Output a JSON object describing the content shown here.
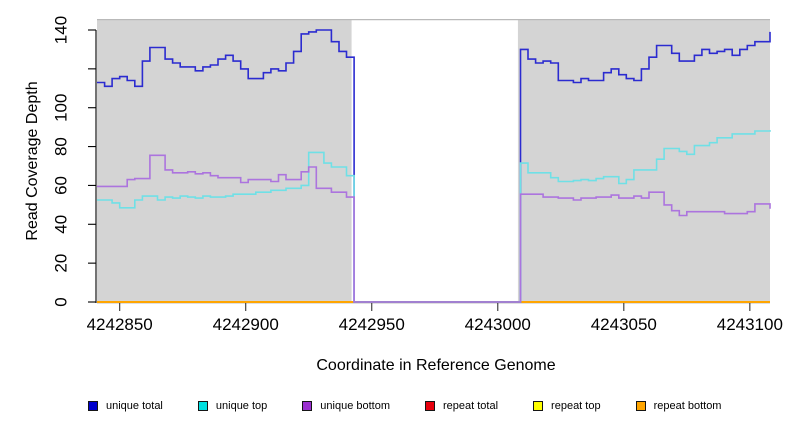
{
  "figure": {
    "background": "#ffffff",
    "plot_background": "#d4d4d4",
    "plot_top_border": "#b9b9b9"
  },
  "chart_data": {
    "type": "line",
    "subtype": "step",
    "title": "",
    "xlabel": "Coordinate in Reference Genome",
    "ylabel": "Read Coverage Depth",
    "xlim": [
      4242841,
      4243108
    ],
    "ylim": [
      0,
      140
    ],
    "grid": false,
    "x_ticks": {
      "values": [
        4242850,
        4242900,
        4242950,
        4243000,
        4243050,
        4243100
      ],
      "labels": [
        "4242850",
        "4242900",
        "4242950",
        "4243000",
        "4243050",
        "4243100"
      ]
    },
    "y_ticks": {
      "values": [
        0,
        20,
        40,
        60,
        80,
        100,
        120,
        140
      ],
      "labels": [
        "0",
        "20",
        "40",
        "60",
        "80",
        "100",
        "",
        "140"
      ]
    },
    "gap_region": {
      "x_start": 4242942,
      "x_end": 4243008,
      "fill": "#ffffff",
      "note": "no-data gap; all unique series drop to 0"
    },
    "x_start": 4242841,
    "x_step": 3,
    "n_points": 90,
    "series": [
      {
        "name": "unique total",
        "color": "#2B2BD0",
        "width": 1.6,
        "values": [
          113,
          111,
          115,
          116,
          114,
          111,
          124,
          131,
          131,
          125,
          123,
          121,
          121,
          119,
          121,
          122,
          125,
          127,
          124,
          120,
          115,
          115,
          118,
          120,
          119,
          123,
          129,
          138,
          139,
          140,
          140,
          134,
          129,
          126,
          0,
          0,
          0,
          0,
          0,
          0,
          0,
          0,
          0,
          0,
          0,
          0,
          0,
          0,
          0,
          0,
          0,
          0,
          0,
          0,
          0,
          0,
          130,
          125,
          123,
          124,
          123,
          114,
          114,
          113,
          115,
          114,
          114,
          118,
          120,
          117,
          115,
          114,
          120,
          126,
          132,
          132,
          128,
          124,
          124,
          127,
          130,
          128,
          129,
          130,
          127,
          130,
          132,
          134,
          134,
          139
        ]
      },
      {
        "name": "unique top",
        "color": "#6FE0E6",
        "width": 1.6,
        "values": [
          52.5,
          52.5,
          51,
          48.5,
          48.5,
          52.5,
          54.5,
          54.5,
          52.5,
          54,
          53.5,
          54.5,
          54,
          53.5,
          54.5,
          54,
          54,
          54.5,
          55.5,
          55.5,
          55.5,
          56.5,
          56.5,
          57.5,
          57.5,
          58.5,
          58.5,
          60,
          77,
          77,
          71.5,
          69.5,
          69.5,
          65,
          0,
          0,
          0,
          0,
          0,
          0,
          0,
          0,
          0,
          0,
          0,
          0,
          0,
          0,
          0,
          0,
          0,
          0,
          0,
          0,
          0,
          0,
          71.5,
          66.5,
          66.5,
          66.5,
          64,
          62,
          62,
          62.5,
          63,
          62.5,
          63.5,
          64.5,
          64.5,
          61,
          63,
          68,
          68,
          68,
          73.5,
          79,
          79,
          77.5,
          76,
          80.5,
          80.5,
          82,
          84.5,
          84.5,
          86.5,
          86.5,
          86.5,
          88,
          88,
          88.5
        ]
      },
      {
        "name": "unique bottom",
        "color": "#AC74DE",
        "width": 1.6,
        "values": [
          59.5,
          59.5,
          59.5,
          59.5,
          63,
          63.5,
          63.5,
          75.5,
          75.5,
          68,
          66.5,
          66.5,
          67,
          66,
          66.5,
          65,
          64,
          64,
          64,
          61.5,
          63,
          63,
          63,
          62,
          65.5,
          63,
          63,
          67,
          69.5,
          58.5,
          58.5,
          56.5,
          56.5,
          54,
          0,
          0,
          0,
          0,
          0,
          0,
          0,
          0,
          0,
          0,
          0,
          0,
          0,
          0,
          0,
          0,
          0,
          0,
          0,
          0,
          0,
          0,
          55.5,
          55.5,
          55.5,
          54,
          54,
          53.5,
          53.5,
          52.5,
          53.5,
          53.5,
          54,
          54,
          55,
          53.5,
          53.5,
          54.5,
          53.5,
          56.5,
          56.5,
          50,
          47,
          44.5,
          46.5,
          46.5,
          46.5,
          46.5,
          46.5,
          45.5,
          45.5,
          45.5,
          46.5,
          50.5,
          50.5,
          48
        ]
      },
      {
        "name": "repeat total",
        "color": "#E8000D",
        "width": 2,
        "constant": 0
      },
      {
        "name": "repeat top",
        "color": "#FFFF00",
        "width": 2,
        "constant": 0
      },
      {
        "name": "repeat bottom",
        "color": "#FFA500",
        "width": 2,
        "constant": 0
      }
    ],
    "draw_order": [
      "repeat total",
      "repeat top",
      "repeat bottom",
      "unique total",
      "unique top",
      "unique bottom"
    ],
    "legend": {
      "position": "bottom",
      "items": [
        {
          "label": "unique total",
          "color": "#0000CD"
        },
        {
          "label": "unique top",
          "color": "#00E0E0"
        },
        {
          "label": "unique bottom",
          "color": "#9B30D0"
        },
        {
          "label": "repeat total",
          "color": "#E8000D"
        },
        {
          "label": "repeat top",
          "color": "#FFFF00"
        },
        {
          "label": "repeat bottom",
          "color": "#FFA500"
        }
      ]
    }
  }
}
